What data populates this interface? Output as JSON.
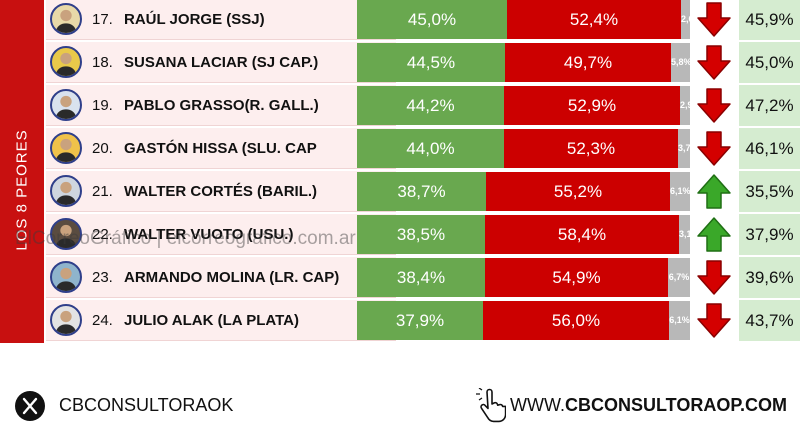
{
  "sidebar": {
    "label": "LOS 8 PEORES"
  },
  "watermark": {
    "text": "ElCorreoGráfico | elcorreografico.com.ar"
  },
  "colors": {
    "approve": "#69a84f",
    "disapprove": "#cc0000",
    "unknown": "#b8b8b8",
    "sidebar": "#c81010",
    "approval_bg": "#d5ecd0"
  },
  "chart_data": {
    "type": "bar",
    "orientation": "horizontal-stacked",
    "categories": [
      "RAÚL JORGE (SSJ)",
      "SUSANA LACIAR (SJ CAP.)",
      "PABLO GRASSO(R. GALL.)",
      "GASTÓN HISSA (SLU. CAP",
      "WALTER CORTÉS (BARIL.)",
      "WALTER VUOTO (USU.)",
      "ARMANDO MOLINA (LR. CAP)",
      "JULIO ALAK (LA PLATA)"
    ],
    "rows": [
      {
        "rank": "17.",
        "name": "RAÚL JORGE (SSJ)",
        "a": 45.0,
        "a_label": "45,0%",
        "b": 52.4,
        "b_label": "52,4%",
        "c": 2.6,
        "c_label": "2,6%",
        "trend": "down",
        "approval": "45,9%",
        "avatar_color": "#e8d9a8"
      },
      {
        "rank": "18.",
        "name": "SUSANA LACIAR (SJ CAP.)",
        "a": 44.5,
        "a_label": "44,5%",
        "b": 49.7,
        "b_label": "49,7%",
        "c": 5.8,
        "c_label": "5,8%",
        "trend": "down",
        "approval": "45,0%",
        "avatar_color": "#e9c94a"
      },
      {
        "rank": "19.",
        "name": "PABLO GRASSO(R. GALL.)",
        "a": 44.2,
        "a_label": "44,2%",
        "b": 52.9,
        "b_label": "52,9%",
        "c": 2.9,
        "c_label": "2,9%",
        "trend": "down",
        "approval": "47,2%",
        "avatar_color": "#d9e2ee"
      },
      {
        "rank": "20.",
        "name": "GASTÓN HISSA (SLU. CAP",
        "a": 44.0,
        "a_label": "44,0%",
        "b": 52.3,
        "b_label": "52,3%",
        "c": 3.7,
        "c_label": "3,7%",
        "trend": "down",
        "approval": "46,1%",
        "avatar_color": "#f0c24a"
      },
      {
        "rank": "21.",
        "name": "WALTER CORTÉS (BARIL.)",
        "a": 38.7,
        "a_label": "38,7%",
        "b": 55.2,
        "b_label": "55,2%",
        "c": 6.1,
        "c_label": "6,1%",
        "trend": "up",
        "approval": "35,5%",
        "avatar_color": "#cfd6df"
      },
      {
        "rank": "22.",
        "name": "WALTER VUOTO (USU.)",
        "a": 38.5,
        "a_label": "38,5%",
        "b": 58.4,
        "b_label": "58,4%",
        "c": 3.1,
        "c_label": "3,1%",
        "trend": "up",
        "approval": "37,9%",
        "avatar_color": "#5a4c40"
      },
      {
        "rank": "23.",
        "name": "ARMANDO MOLINA (LR. CAP)",
        "a": 38.4,
        "a_label": "38,4%",
        "b": 54.9,
        "b_label": "54,9%",
        "c": 6.7,
        "c_label": "6,7%",
        "trend": "down",
        "approval": "39,6%",
        "avatar_color": "#8fb4cc"
      },
      {
        "rank": "24.",
        "name": "JULIO ALAK (LA PLATA)",
        "a": 37.9,
        "a_label": "37,9%",
        "b": 56.0,
        "b_label": "56,0%",
        "c": 6.1,
        "c_label": "6,1%",
        "trend": "down",
        "approval": "43,7%",
        "avatar_color": "#e3e3e3"
      }
    ]
  },
  "footer": {
    "handle": "CBCONSULTORAOK",
    "url_prefix": "WWW.",
    "url_main": "CBCONSULTORAOP.COM"
  }
}
